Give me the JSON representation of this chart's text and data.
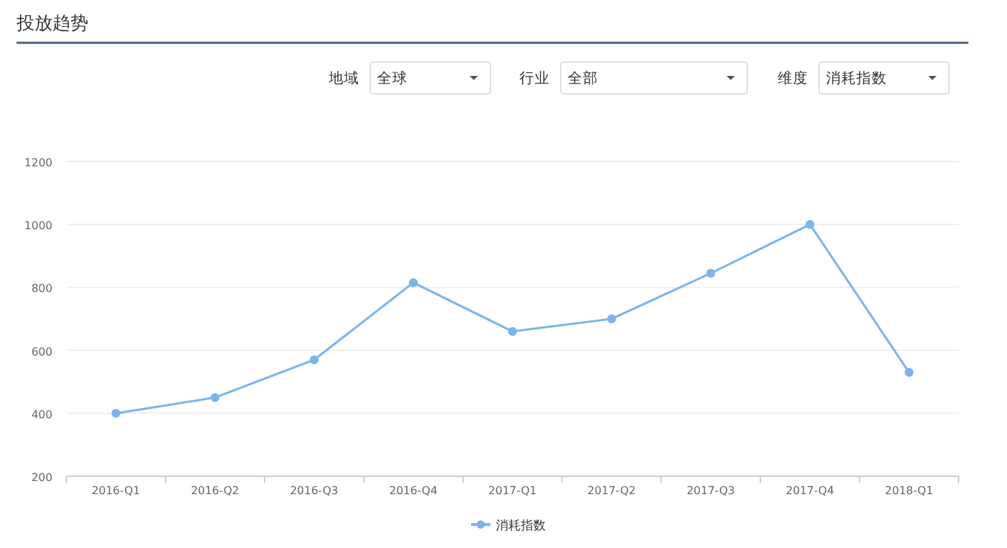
{
  "chart_data": {
    "type": "line",
    "title": "投放趋势",
    "annotations": [
      "地域",
      "全球",
      "行业",
      "全部",
      "维度",
      "消耗指数"
    ],
    "categories": [
      "2016-Q1",
      "2016-Q2",
      "2016-Q3",
      "2016-Q4",
      "2017-Q1",
      "2017-Q2",
      "2017-Q3",
      "2017-Q4",
      "2018-Q1"
    ],
    "series": [
      {
        "name": "消耗指数",
        "color": "#7cb5ec",
        "values": [
          400,
          450,
          570,
          815,
          660,
          700,
          845,
          1000,
          530
        ]
      }
    ],
    "ylim": [
      200,
      1200
    ],
    "yticks": [
      200,
      400,
      600,
      800,
      1000,
      1200
    ],
    "grid": "y",
    "legend": "bottom",
    "marker": "circle",
    "line_style": "solid"
  }
}
